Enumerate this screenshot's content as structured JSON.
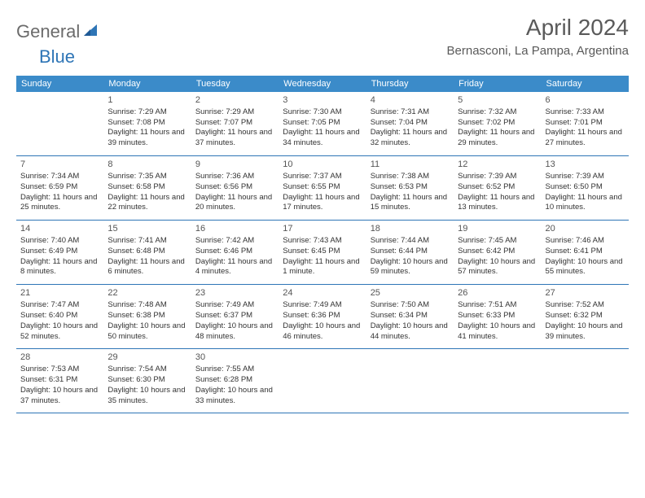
{
  "logo": {
    "part1": "General",
    "part2": "Blue"
  },
  "title": "April 2024",
  "location": "Bernasconi, La Pampa, Argentina",
  "header_bg": "#3b8bc9",
  "border_color": "#2e75b6",
  "weekdays": [
    "Sunday",
    "Monday",
    "Tuesday",
    "Wednesday",
    "Thursday",
    "Friday",
    "Saturday"
  ],
  "weeks": [
    [
      null,
      {
        "n": "1",
        "sr": "7:29 AM",
        "ss": "7:08 PM",
        "dl": "11 hours and 39 minutes."
      },
      {
        "n": "2",
        "sr": "7:29 AM",
        "ss": "7:07 PM",
        "dl": "11 hours and 37 minutes."
      },
      {
        "n": "3",
        "sr": "7:30 AM",
        "ss": "7:05 PM",
        "dl": "11 hours and 34 minutes."
      },
      {
        "n": "4",
        "sr": "7:31 AM",
        "ss": "7:04 PM",
        "dl": "11 hours and 32 minutes."
      },
      {
        "n": "5",
        "sr": "7:32 AM",
        "ss": "7:02 PM",
        "dl": "11 hours and 29 minutes."
      },
      {
        "n": "6",
        "sr": "7:33 AM",
        "ss": "7:01 PM",
        "dl": "11 hours and 27 minutes."
      }
    ],
    [
      {
        "n": "7",
        "sr": "7:34 AM",
        "ss": "6:59 PM",
        "dl": "11 hours and 25 minutes."
      },
      {
        "n": "8",
        "sr": "7:35 AM",
        "ss": "6:58 PM",
        "dl": "11 hours and 22 minutes."
      },
      {
        "n": "9",
        "sr": "7:36 AM",
        "ss": "6:56 PM",
        "dl": "11 hours and 20 minutes."
      },
      {
        "n": "10",
        "sr": "7:37 AM",
        "ss": "6:55 PM",
        "dl": "11 hours and 17 minutes."
      },
      {
        "n": "11",
        "sr": "7:38 AM",
        "ss": "6:53 PM",
        "dl": "11 hours and 15 minutes."
      },
      {
        "n": "12",
        "sr": "7:39 AM",
        "ss": "6:52 PM",
        "dl": "11 hours and 13 minutes."
      },
      {
        "n": "13",
        "sr": "7:39 AM",
        "ss": "6:50 PM",
        "dl": "11 hours and 10 minutes."
      }
    ],
    [
      {
        "n": "14",
        "sr": "7:40 AM",
        "ss": "6:49 PM",
        "dl": "11 hours and 8 minutes."
      },
      {
        "n": "15",
        "sr": "7:41 AM",
        "ss": "6:48 PM",
        "dl": "11 hours and 6 minutes."
      },
      {
        "n": "16",
        "sr": "7:42 AM",
        "ss": "6:46 PM",
        "dl": "11 hours and 4 minutes."
      },
      {
        "n": "17",
        "sr": "7:43 AM",
        "ss": "6:45 PM",
        "dl": "11 hours and 1 minute."
      },
      {
        "n": "18",
        "sr": "7:44 AM",
        "ss": "6:44 PM",
        "dl": "10 hours and 59 minutes."
      },
      {
        "n": "19",
        "sr": "7:45 AM",
        "ss": "6:42 PM",
        "dl": "10 hours and 57 minutes."
      },
      {
        "n": "20",
        "sr": "7:46 AM",
        "ss": "6:41 PM",
        "dl": "10 hours and 55 minutes."
      }
    ],
    [
      {
        "n": "21",
        "sr": "7:47 AM",
        "ss": "6:40 PM",
        "dl": "10 hours and 52 minutes."
      },
      {
        "n": "22",
        "sr": "7:48 AM",
        "ss": "6:38 PM",
        "dl": "10 hours and 50 minutes."
      },
      {
        "n": "23",
        "sr": "7:49 AM",
        "ss": "6:37 PM",
        "dl": "10 hours and 48 minutes."
      },
      {
        "n": "24",
        "sr": "7:49 AM",
        "ss": "6:36 PM",
        "dl": "10 hours and 46 minutes."
      },
      {
        "n": "25",
        "sr": "7:50 AM",
        "ss": "6:34 PM",
        "dl": "10 hours and 44 minutes."
      },
      {
        "n": "26",
        "sr": "7:51 AM",
        "ss": "6:33 PM",
        "dl": "10 hours and 41 minutes."
      },
      {
        "n": "27",
        "sr": "7:52 AM",
        "ss": "6:32 PM",
        "dl": "10 hours and 39 minutes."
      }
    ],
    [
      {
        "n": "28",
        "sr": "7:53 AM",
        "ss": "6:31 PM",
        "dl": "10 hours and 37 minutes."
      },
      {
        "n": "29",
        "sr": "7:54 AM",
        "ss": "6:30 PM",
        "dl": "10 hours and 35 minutes."
      },
      {
        "n": "30",
        "sr": "7:55 AM",
        "ss": "6:28 PM",
        "dl": "10 hours and 33 minutes."
      },
      null,
      null,
      null,
      null
    ]
  ],
  "labels": {
    "sunrise": "Sunrise:",
    "sunset": "Sunset:",
    "daylight": "Daylight:"
  }
}
